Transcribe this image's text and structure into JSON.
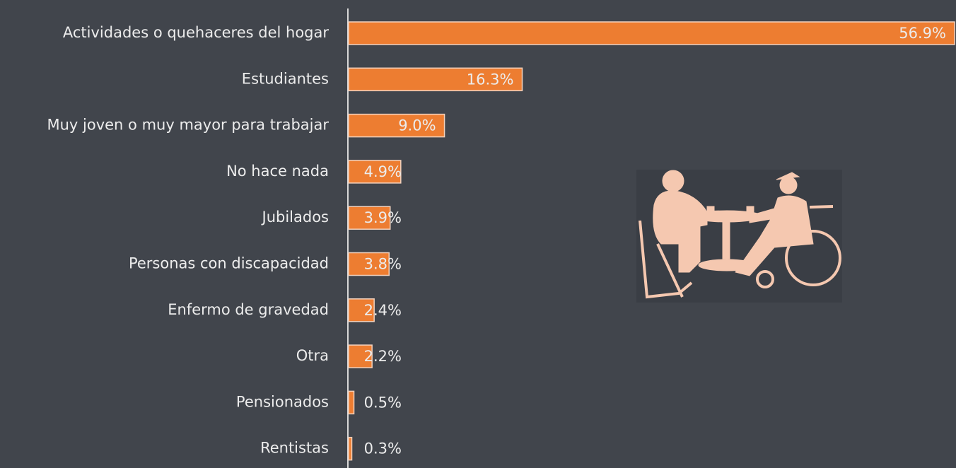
{
  "chart_data": {
    "type": "bar",
    "orientation": "horizontal",
    "categories": [
      "Actividades o quehaceres del hogar",
      "Estudiantes",
      "Muy joven o muy mayor para trabajar",
      "No hace nada",
      "Jubilados",
      "Personas con discapacidad",
      "Enfermo de gravedad",
      "Otra",
      "Pensionados",
      "Rentistas"
    ],
    "values": [
      56.9,
      16.3,
      9.0,
      4.9,
      3.9,
      3.8,
      2.4,
      2.2,
      0.5,
      0.3
    ],
    "value_labels": [
      "56.9%",
      "16.3%",
      "9.0%",
      "4.9%",
      "3.9%",
      "3.8%",
      "2.4%",
      "2.2%",
      "0.5%",
      "0.3%"
    ],
    "color": "#ed7d31"
  }
}
